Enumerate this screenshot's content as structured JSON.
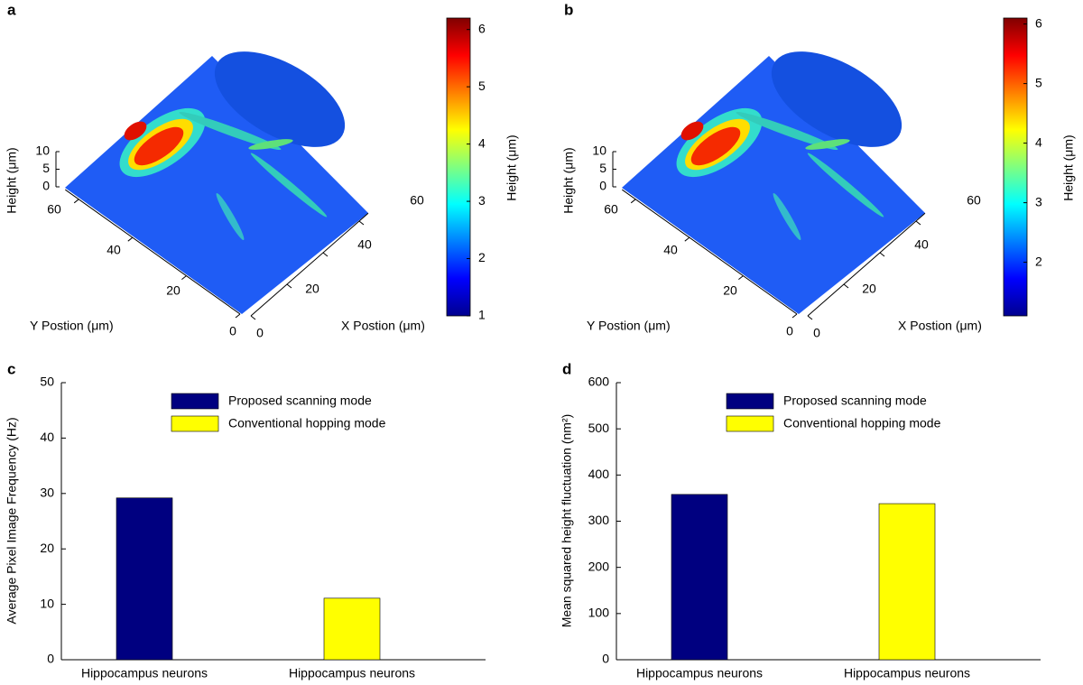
{
  "chart_data": [
    {
      "type": "surface3d",
      "panel_label": "a",
      "x_label": "X Postion (μm)",
      "y_label": "Y Postion (μm)",
      "z_label": "Height (μm)",
      "xlim": [
        0,
        65
      ],
      "ylim": [
        0,
        65
      ],
      "zlim": [
        0,
        10
      ],
      "xticks": [
        0,
        20,
        40,
        60
      ],
      "yticks": [
        0,
        20,
        40,
        60
      ],
      "zticks": [
        0,
        5,
        10
      ],
      "colorbar_label": "Height (μm)",
      "clim": [
        1,
        6.2
      ],
      "colorbar_ticks": [
        1,
        2,
        3,
        4,
        5,
        6
      ],
      "colormap": "jet"
    },
    {
      "type": "surface3d",
      "panel_label": "b",
      "x_label": "X Postion (μm)",
      "y_label": "Y Postion (μm)",
      "z_label": "Height (μm)",
      "xlim": [
        0,
        65
      ],
      "ylim": [
        0,
        65
      ],
      "zlim": [
        0,
        10
      ],
      "xticks": [
        0,
        20,
        40,
        60
      ],
      "yticks": [
        0,
        20,
        40,
        60
      ],
      "zticks": [
        0,
        5,
        10
      ],
      "colorbar_label": "Height (μm)",
      "clim": [
        1.1,
        6.1
      ],
      "colorbar_ticks": [
        2,
        3,
        4,
        5,
        6
      ],
      "colormap": "jet"
    },
    {
      "type": "bar",
      "panel_label": "c",
      "y_label": "Average Pixel Image Frequency (Hz)",
      "categories": [
        "Hippocampus neurons",
        "Hippocampus neurons"
      ],
      "series": [
        {
          "name": "Proposed scanning mode",
          "color": "#000080",
          "values": [
            29.2,
            null
          ]
        },
        {
          "name": "Conventional hopping mode",
          "color": "#ffff00",
          "values": [
            null,
            11.1
          ]
        }
      ],
      "ylim": [
        0,
        50
      ],
      "yticks": [
        0,
        10,
        20,
        30,
        40,
        50
      ]
    },
    {
      "type": "bar",
      "panel_label": "d",
      "y_label": "Mean squared height fluctuation (nm²)",
      "categories": [
        "Hippocampus neurons",
        "Hippocampus neurons"
      ],
      "series": [
        {
          "name": "Proposed scanning mode",
          "color": "#000080",
          "values": [
            358,
            null
          ]
        },
        {
          "name": "Conventional hopping mode",
          "color": "#ffff00",
          "values": [
            null,
            338
          ]
        }
      ],
      "ylim": [
        0,
        600
      ],
      "yticks": [
        0,
        100,
        200,
        300,
        400,
        500,
        600
      ]
    }
  ]
}
